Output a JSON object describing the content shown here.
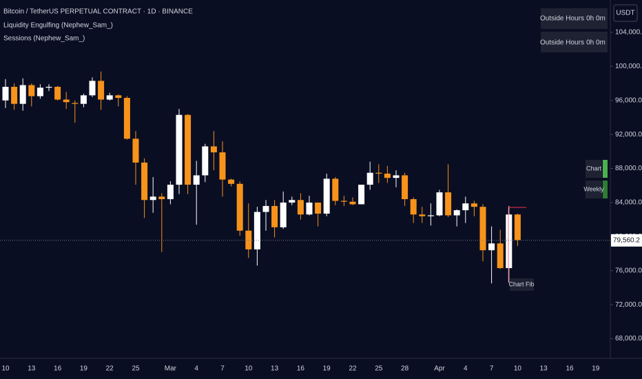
{
  "chart_data": {
    "type": "candlestick",
    "title": "Bitcoin / TetherUS PERPETUAL CONTRACT · 1D · BINANCE",
    "indicators": [
      "Liquidity Engulfing (Nephew_Sam_)",
      "Sessions (Nephew_Sam_)"
    ],
    "currency": "USDT",
    "session_table": [
      [
        "Outside Hours",
        "0h 0m"
      ],
      [
        "Outside Hours",
        "0h 0m"
      ]
    ],
    "side_labels": [
      "Chart",
      "Weekly"
    ],
    "annotation": "Chart Fib",
    "categories": [
      "10",
      null,
      null,
      "13",
      null,
      null,
      "16",
      null,
      null,
      "19",
      null,
      null,
      "22",
      null,
      null,
      "25",
      null,
      null,
      null,
      "Mar",
      null,
      null,
      "4",
      null,
      null,
      "7",
      null,
      null,
      "10",
      null,
      null,
      "13",
      null,
      null,
      "16",
      null,
      null,
      "19",
      null,
      null,
      "22",
      null,
      null,
      "25",
      null,
      null,
      "28",
      null,
      null,
      null,
      "Apr",
      null,
      null,
      "4",
      null,
      null,
      "7",
      null,
      null,
      "10",
      null,
      null,
      "13",
      null,
      null,
      "16",
      null,
      null,
      "19"
    ],
    "open": [
      96000,
      97600,
      95600,
      97800,
      96500,
      97500,
      97600,
      96100,
      95700,
      95600,
      96600,
      98300,
      96100,
      96600,
      96300,
      91500,
      88700,
      84300,
      84700,
      84400,
      86100,
      94300,
      86100,
      87200,
      90600,
      89900,
      86700,
      86200,
      80700,
      78500,
      82900,
      83600,
      81100,
      84000,
      84300,
      82600,
      84000,
      82700,
      86800,
      84200,
      84100,
      83800,
      86100,
      87500,
      87400,
      86900,
      87200,
      84400,
      82600,
      82400,
      82500,
      85200,
      82500,
      83100,
      83900,
      83500,
      78400,
      79200,
      76300,
      82600,
      null,
      null,
      null,
      null,
      null,
      null,
      null,
      null,
      null
    ],
    "high": [
      98500,
      98000,
      98600,
      98000,
      97900,
      97900,
      97700,
      97000,
      96000,
      96800,
      98700,
      99400,
      96900,
      96700,
      96500,
      92400,
      89200,
      87000,
      85100,
      86500,
      95000,
      94400,
      88900,
      90900,
      92400,
      91200,
      86800,
      86500,
      83900,
      83500,
      84300,
      84300,
      85300,
      84700,
      85100,
      84800,
      84000,
      87400,
      87000,
      84800,
      84600,
      86000,
      88800,
      88500,
      88300,
      87800,
      87500,
      84600,
      83500,
      83900,
      85500,
      88500,
      83200,
      84700,
      84200,
      83800,
      81200,
      80800,
      83600,
      82700,
      null,
      null,
      null,
      null,
      null,
      null,
      null,
      null,
      null
    ],
    "low": [
      95100,
      94900,
      94800,
      95300,
      96200,
      97100,
      96000,
      95000,
      93400,
      95200,
      96400,
      94900,
      96000,
      95300,
      91400,
      86100,
      82200,
      82800,
      78200,
      83800,
      85000,
      85000,
      81400,
      86400,
      87800,
      84700,
      85900,
      80100,
      77500,
      76600,
      80700,
      79900,
      80900,
      83700,
      82000,
      82500,
      81200,
      82400,
      83700,
      83600,
      83700,
      83800,
      85500,
      86300,
      86300,
      85800,
      83600,
      81600,
      81600,
      81300,
      82400,
      82300,
      81200,
      81600,
      82400,
      77100,
      74500,
      76200,
      74600,
      78900,
      null,
      null,
      null,
      null,
      null,
      null,
      null,
      null,
      null
    ],
    "close": [
      97600,
      95600,
      97800,
      96500,
      97500,
      97600,
      96100,
      95800,
      95600,
      96600,
      98300,
      96100,
      96600,
      96300,
      91500,
      88700,
      84300,
      84700,
      84400,
      86100,
      94300,
      86100,
      87200,
      90600,
      89900,
      86700,
      86200,
      80700,
      78500,
      82900,
      83600,
      81100,
      84000,
      84300,
      82600,
      84000,
      82700,
      86800,
      84200,
      84100,
      83800,
      86100,
      87500,
      87400,
      86900,
      87200,
      84400,
      82600,
      82400,
      82500,
      85200,
      82500,
      83100,
      83900,
      83500,
      78400,
      79200,
      76300,
      82600,
      79600,
      null,
      null,
      null,
      null,
      null,
      null,
      null,
      null,
      null
    ],
    "up_color": "#ffffff",
    "down_color": "#f7931a",
    "last_price": {
      "value": 79560.2,
      "label": "79,560.2"
    },
    "ylim": [
      65700,
      107800
    ],
    "yticks": [
      {
        "value": 68000,
        "label": "68,000.0"
      },
      {
        "value": 72000,
        "label": "72,000.0"
      },
      {
        "value": 76000,
        "label": "76,000.0"
      },
      {
        "value": 80000,
        "label": "80,000.0"
      },
      {
        "value": 84000,
        "label": "84,000.0"
      },
      {
        "value": 88000,
        "label": "88,000.0"
      },
      {
        "value": 92000,
        "label": "92,000.0"
      },
      {
        "value": 96000,
        "label": "96,000.0"
      },
      {
        "value": 100000,
        "label": "100,000.0"
      },
      {
        "value": 104000,
        "label": "104,000.0"
      }
    ]
  }
}
